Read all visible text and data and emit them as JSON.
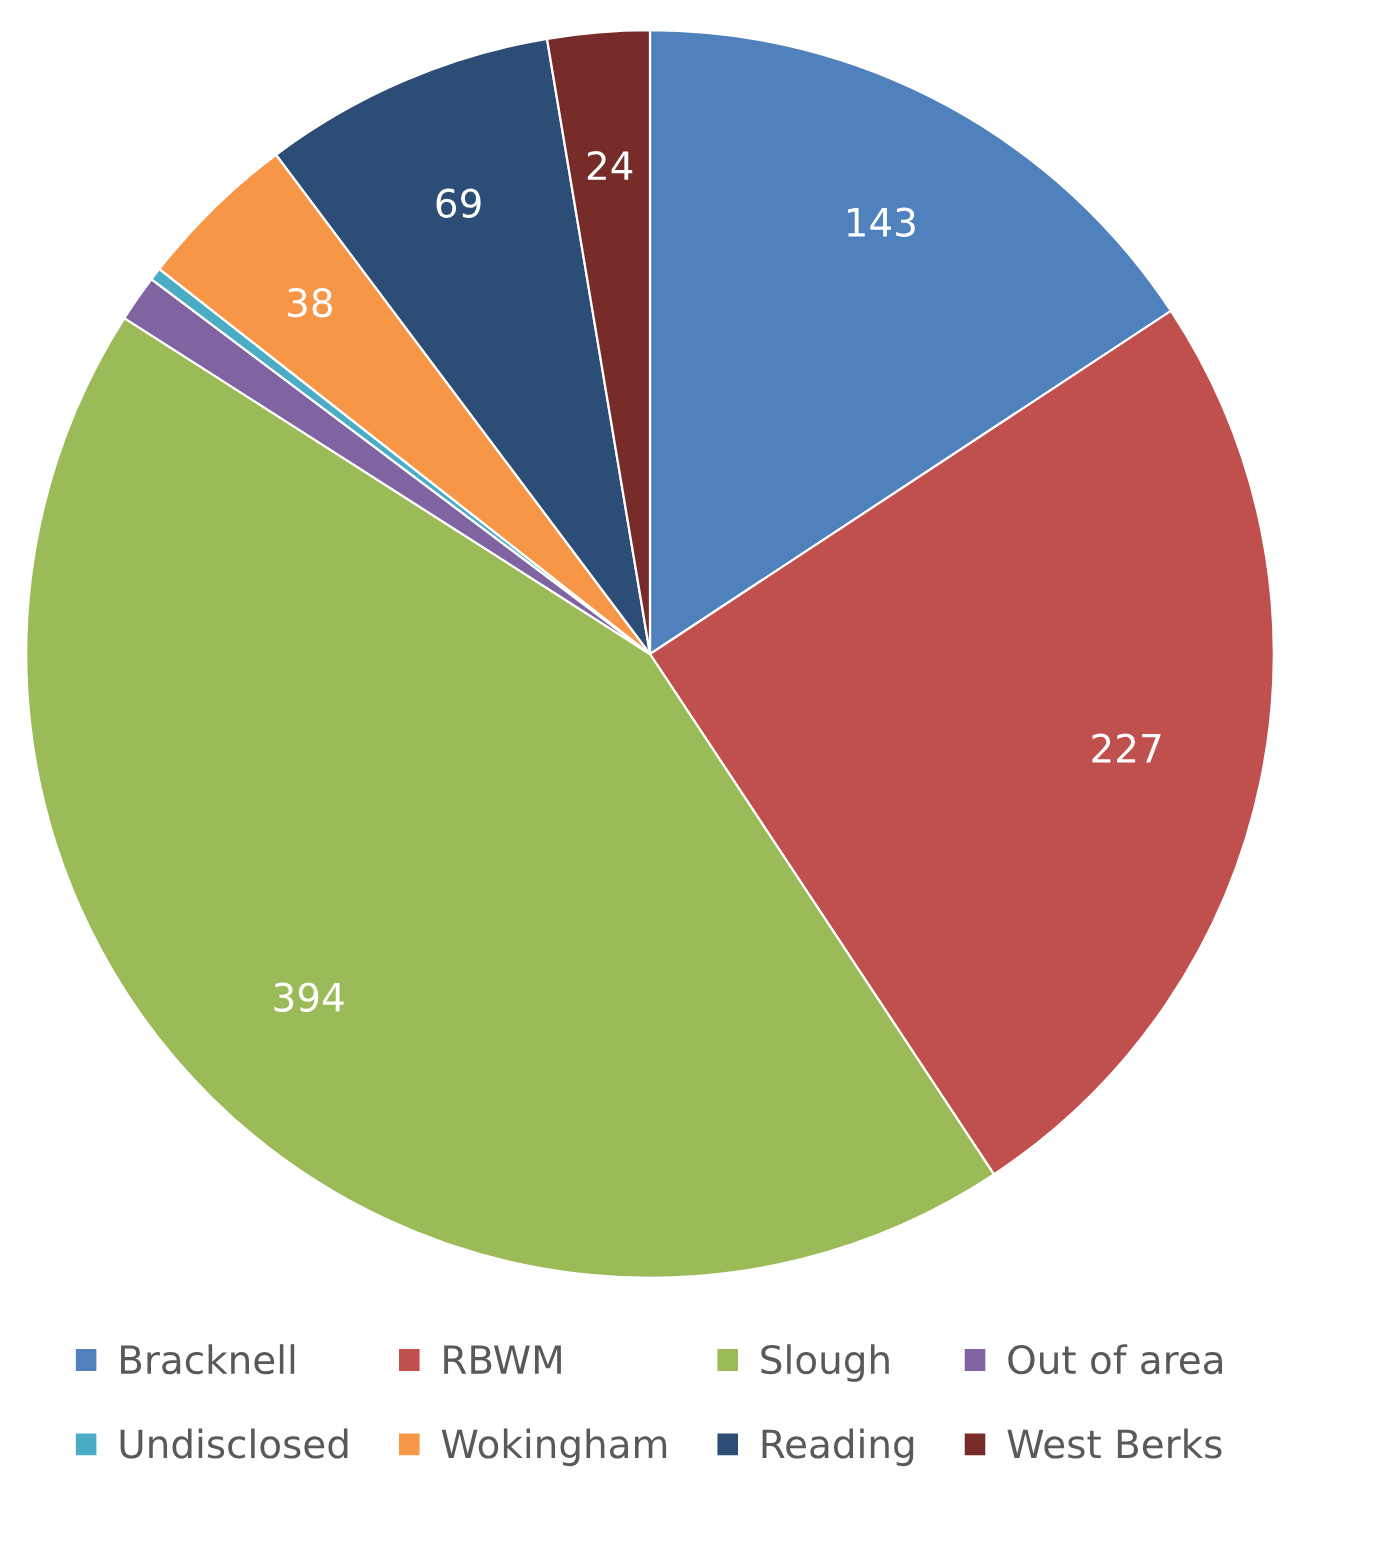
{
  "chart_data": {
    "type": "pie",
    "categories": [
      "Bracknell",
      "RBWM",
      "Slough",
      "Out of area",
      "Undisclosed",
      "Wokingham",
      "Reading",
      "West Berks"
    ],
    "values": [
      143,
      227,
      394,
      11,
      3,
      38,
      69,
      24
    ],
    "value_labels": [
      "143",
      "227",
      "394",
      null,
      null,
      "38",
      "69",
      "24"
    ],
    "colors": [
      "#4f81bd",
      "#c0504d",
      "#9bbb59",
      "#8064a2",
      "#4bacc6",
      "#f79646",
      "#2c4d75",
      "#772c2a"
    ],
    "legend": "bottom"
  }
}
